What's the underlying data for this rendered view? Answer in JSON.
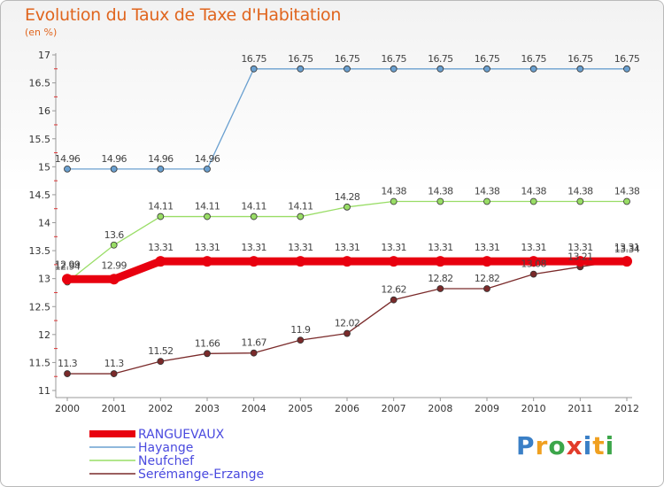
{
  "title": "Evolution du Taux de Taxe d'Habitation",
  "subtitle": "(en %)",
  "brand": "Proxiti",
  "chart_data": {
    "type": "line",
    "x": [
      "2000",
      "2001",
      "2002",
      "2003",
      "2004",
      "2005",
      "2006",
      "2007",
      "2008",
      "2009",
      "2010",
      "2011",
      "2012"
    ],
    "ylim": [
      11,
      17
    ],
    "yticks": [
      "11",
      "11.5",
      "12",
      "12.5",
      "13",
      "13.5",
      "14",
      "14.5",
      "15",
      "15.5",
      "16",
      "16.5",
      "17"
    ],
    "grid": false,
    "legend_position": "bottom-left",
    "series": [
      {
        "name": "RANGUEVAUX",
        "color": "#e8000f",
        "values": [
          12.99,
          12.99,
          13.31,
          13.31,
          13.31,
          13.31,
          13.31,
          13.31,
          13.31,
          13.31,
          13.31,
          13.31,
          13.31
        ],
        "labels": [
          "12.99",
          "12.99",
          "13.31",
          "13.31",
          "13.31",
          "13.31",
          "13.31",
          "13.31",
          "13.31",
          "13.31",
          "13.31",
          "13.31",
          "13.31"
        ]
      },
      {
        "name": "Hayange",
        "color": "#6aa0d0",
        "values": [
          14.96,
          14.96,
          14.96,
          14.96,
          16.75,
          16.75,
          16.75,
          16.75,
          16.75,
          16.75,
          16.75,
          16.75,
          16.75
        ],
        "labels": [
          "14.96",
          "14.96",
          "14.96",
          "14.96",
          "16.75",
          "16.75",
          "16.75",
          "16.75",
          "16.75",
          "16.75",
          "16.75",
          "16.75",
          "16.75"
        ]
      },
      {
        "name": "Neufchef",
        "color": "#99dd66",
        "values": [
          12.94,
          13.6,
          14.11,
          14.11,
          14.11,
          14.11,
          14.28,
          14.38,
          14.38,
          14.38,
          14.38,
          14.38,
          14.38
        ],
        "labels": [
          "12.94",
          "13.6",
          "14.11",
          "14.11",
          "14.11",
          "14.11",
          "14.28",
          "14.38",
          "14.38",
          "14.38",
          "14.38",
          "14.38",
          "14.38"
        ]
      },
      {
        "name": "Serémange-Erzange",
        "color": "#7a2a2a",
        "values": [
          11.3,
          11.3,
          11.52,
          11.66,
          11.67,
          11.9,
          12.02,
          12.62,
          12.82,
          12.82,
          13.08,
          13.21,
          13.34
        ],
        "labels": [
          "11.3",
          "11.3",
          "11.52",
          "11.66",
          "11.67",
          "11.9",
          "12.02",
          "12.62",
          "12.82",
          "12.82",
          "13.08",
          "13.21",
          "13.34"
        ]
      }
    ]
  }
}
